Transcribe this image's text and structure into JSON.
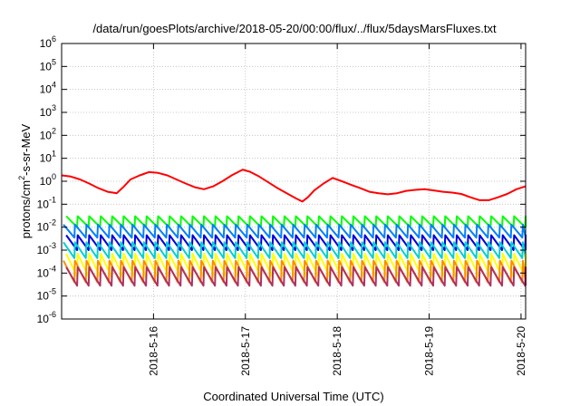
{
  "chart_data": {
    "type": "line",
    "title": "/data/run/goesPlots/archive/2018-05-20/00:00/flux/../flux/5daysMarsFluxes.txt",
    "xlabel": "Coordinated Universal Time (UTC)",
    "ylabel_parts": [
      "protons/cm",
      "2",
      "-s-sr-MeV"
    ],
    "x_range_days": [
      15.0,
      20.05
    ],
    "x_ticks": [
      {
        "label": "2018-5-16",
        "day": 16
      },
      {
        "label": "2018-5-17",
        "day": 17
      },
      {
        "label": "2018-5-18",
        "day": 18
      },
      {
        "label": "2018-5-19",
        "day": 19
      },
      {
        "label": "2018-5-20",
        "day": 20
      }
    ],
    "y_scale": "log",
    "y_range": [
      1e-06,
      1000000.0
    ],
    "y_tick_exponents": [
      -6,
      -5,
      -4,
      -3,
      -2,
      -1,
      0,
      1,
      2,
      3,
      4,
      5,
      6
    ],
    "y_tick_base": "10",
    "grid": true,
    "sawtooth_period_days": 0.125,
    "series": [
      {
        "color": "#ff0000",
        "style": "envelope",
        "points": [
          [
            15.0,
            1.8
          ],
          [
            15.1,
            1.6
          ],
          [
            15.2,
            1.2
          ],
          [
            15.3,
            0.8
          ],
          [
            15.4,
            0.5
          ],
          [
            15.5,
            0.35
          ],
          [
            15.6,
            0.3
          ],
          [
            15.68,
            0.6
          ],
          [
            15.75,
            1.2
          ],
          [
            15.85,
            1.8
          ],
          [
            15.95,
            2.5
          ],
          [
            16.05,
            2.3
          ],
          [
            16.15,
            1.8
          ],
          [
            16.25,
            1.2
          ],
          [
            16.35,
            0.8
          ],
          [
            16.45,
            0.55
          ],
          [
            16.55,
            0.45
          ],
          [
            16.65,
            0.6
          ],
          [
            16.75,
            1.0
          ],
          [
            16.85,
            1.8
          ],
          [
            16.97,
            3.2
          ],
          [
            17.05,
            2.6
          ],
          [
            17.15,
            1.6
          ],
          [
            17.25,
            0.9
          ],
          [
            17.35,
            0.5
          ],
          [
            17.45,
            0.3
          ],
          [
            17.55,
            0.18
          ],
          [
            17.62,
            0.13
          ],
          [
            17.68,
            0.2
          ],
          [
            17.75,
            0.4
          ],
          [
            17.85,
            0.8
          ],
          [
            17.95,
            1.4
          ],
          [
            18.05,
            1.0
          ],
          [
            18.15,
            0.7
          ],
          [
            18.25,
            0.5
          ],
          [
            18.35,
            0.35
          ],
          [
            18.45,
            0.3
          ],
          [
            18.55,
            0.27
          ],
          [
            18.65,
            0.3
          ],
          [
            18.75,
            0.38
          ],
          [
            18.85,
            0.42
          ],
          [
            18.95,
            0.45
          ],
          [
            19.05,
            0.4
          ],
          [
            19.15,
            0.35
          ],
          [
            19.25,
            0.32
          ],
          [
            19.35,
            0.28
          ],
          [
            19.45,
            0.2
          ],
          [
            19.55,
            0.15
          ],
          [
            19.65,
            0.15
          ],
          [
            19.75,
            0.2
          ],
          [
            19.85,
            0.28
          ],
          [
            19.95,
            0.45
          ],
          [
            20.05,
            0.6
          ]
        ]
      },
      {
        "color": "#00ff00",
        "style": "sawtooth",
        "peak": 0.03,
        "trough": 0.01
      },
      {
        "color": "#0080ff",
        "style": "sawtooth",
        "peak": 0.013,
        "trough": 0.0035
      },
      {
        "color": "#0000dd",
        "style": "sawtooth",
        "peak": 0.0045,
        "trough": 0.001
      },
      {
        "color": "#00d0d0",
        "style": "sawtooth",
        "peak": 0.0022,
        "trough": 0.00045
      },
      {
        "color": "#ffff00",
        "style": "sawtooth",
        "peak": 0.0007,
        "trough": 7e-05
      },
      {
        "color": "#ff8c00",
        "style": "sawtooth",
        "peak": 0.00035,
        "trough": 4e-05
      },
      {
        "color": "#b03060",
        "style": "sawtooth",
        "peak": 0.00018,
        "trough": 2.8e-05
      }
    ]
  }
}
